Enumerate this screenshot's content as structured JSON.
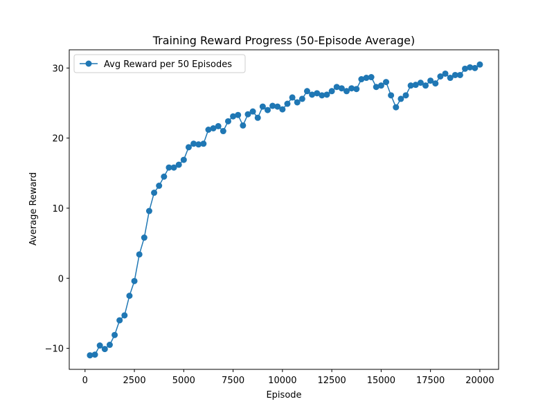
{
  "chart_data": {
    "type": "line",
    "title": "Training Reward Progress (50-Episode Average)",
    "xlabel": "Episode",
    "ylabel": "Average Reward",
    "xlim": [
      -800,
      20950
    ],
    "ylim": [
      -13,
      32.6
    ],
    "xticks": [
      0,
      2500,
      5000,
      7500,
      10000,
      12500,
      15000,
      17500,
      20000
    ],
    "xtick_labels": [
      "0",
      "2500",
      "5000",
      "7500",
      "10000",
      "12500",
      "15000",
      "17500",
      "20000"
    ],
    "yticks": [
      -10,
      0,
      10,
      20,
      30
    ],
    "ytick_labels": [
      "−10",
      "0",
      "10",
      "20",
      "30"
    ],
    "grid": false,
    "legend_position": "top-left",
    "series": [
      {
        "name": "Avg Reward per 50 Episodes",
        "color": "#1f77b4",
        "marker": "circle",
        "x": [
          250,
          500,
          750,
          1000,
          1250,
          1500,
          1750,
          2000,
          2250,
          2500,
          2750,
          3000,
          3250,
          3500,
          3750,
          4000,
          4250,
          4500,
          4750,
          5000,
          5250,
          5500,
          5750,
          6000,
          6250,
          6500,
          6750,
          7000,
          7250,
          7500,
          7750,
          8000,
          8250,
          8500,
          8750,
          9000,
          9250,
          9500,
          9750,
          10000,
          10250,
          10500,
          10750,
          11000,
          11250,
          11500,
          11750,
          12000,
          12250,
          12500,
          12750,
          13000,
          13250,
          13500,
          13750,
          14000,
          14250,
          14500,
          14750,
          15000,
          15250,
          15500,
          15750,
          16000,
          16250,
          16500,
          16750,
          17000,
          17250,
          17500,
          17750,
          18000,
          18250,
          18500,
          18750,
          19000,
          19250,
          19500,
          19750,
          20000
        ],
        "y": [
          -11.0,
          -10.9,
          -9.6,
          -10.1,
          -9.5,
          -8.1,
          -6.0,
          -5.3,
          -2.5,
          -0.4,
          3.4,
          5.8,
          9.6,
          12.2,
          13.2,
          14.5,
          15.8,
          15.8,
          16.2,
          16.9,
          18.7,
          19.2,
          19.1,
          19.2,
          21.2,
          21.4,
          21.7,
          21.0,
          22.4,
          23.1,
          23.3,
          21.8,
          23.4,
          23.8,
          22.9,
          24.5,
          24.0,
          24.6,
          24.5,
          24.1,
          24.9,
          25.8,
          25.1,
          25.6,
          26.7,
          26.2,
          26.4,
          26.1,
          26.2,
          26.7,
          27.3,
          27.1,
          26.7,
          27.1,
          27.0,
          28.4,
          28.6,
          28.7,
          27.3,
          27.5,
          28.0,
          26.1,
          24.4,
          25.6,
          26.1,
          27.5,
          27.6,
          27.9,
          27.5,
          28.2,
          27.8,
          28.8,
          29.2,
          28.6,
          29.0,
          29.0,
          29.9,
          30.1,
          30.0,
          30.5
        ]
      }
    ]
  }
}
